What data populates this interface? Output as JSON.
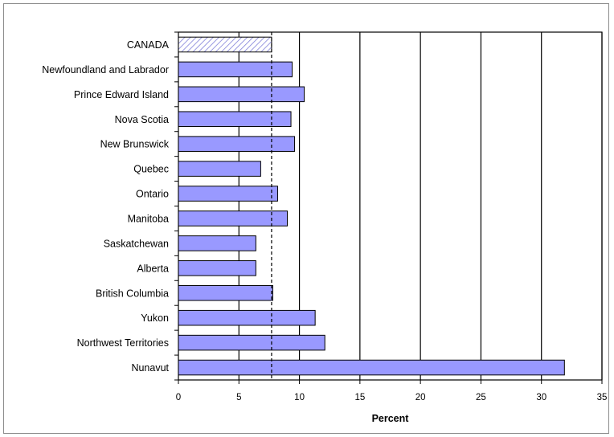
{
  "chart_data": {
    "type": "bar",
    "orientation": "horizontal",
    "title": "",
    "xlabel": "Percent",
    "ylabel": "",
    "xlim": [
      0,
      35
    ],
    "x_ticks": [
      "0",
      "5",
      "10",
      "15",
      "20",
      "25",
      "30",
      "35"
    ],
    "categories": [
      "CANADA",
      "Newfoundland and Labrador",
      "Prince Edward Island",
      "Nova Scotia",
      "New Brunswick",
      "Quebec",
      "Ontario",
      "Manitoba",
      "Saskatchewan",
      "Alberta",
      "British Columbia",
      "Yukon",
      "Northwest Territories",
      "Nunavut"
    ],
    "values": [
      7.7,
      9.4,
      10.4,
      9.3,
      9.6,
      6.8,
      8.2,
      9.0,
      6.4,
      6.4,
      7.8,
      11.3,
      12.1,
      31.9
    ],
    "highlighted_category": "CANADA",
    "reference_line": {
      "value": 7.7,
      "style": "dashed"
    },
    "grid": "vertical-major",
    "legend": "none",
    "colors": {
      "bar_fill": "#9999ff",
      "bar_stroke": "#000000",
      "highlight_hatch": "#7f7fd9",
      "grid": "#000000"
    }
  }
}
